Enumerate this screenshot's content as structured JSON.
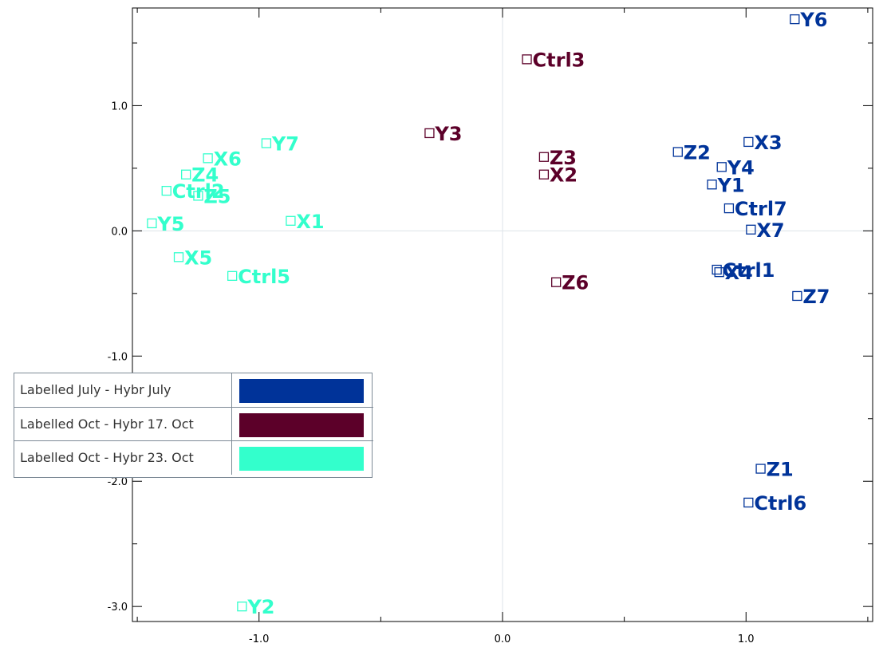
{
  "chart_data": {
    "type": "scatter",
    "title": "",
    "xlabel": "",
    "ylabel": "",
    "xlim": [
      -1.52,
      1.52
    ],
    "ylim": [
      -3.12,
      1.78
    ],
    "x_ticks": [
      {
        "value": -1.0,
        "label": "-1.0"
      },
      {
        "value": 0.0,
        "label": "0.0"
      },
      {
        "value": 1.0,
        "label": "1.0"
      }
    ],
    "y_ticks": [
      {
        "value": 1.0,
        "label": "1.0"
      },
      {
        "value": 0.0,
        "label": "0.0"
      },
      {
        "value": -1.0,
        "label": "-1.0"
      },
      {
        "value": -2.0,
        "label": "-2.0"
      },
      {
        "value": -3.0,
        "label": "-3.0"
      }
    ],
    "zero_lines": true,
    "legend_position": "left",
    "series": [
      {
        "name": "Labelled July - Hybr July",
        "color": "#003399",
        "points": [
          {
            "label": "Y6",
            "x": 1.2,
            "y": 1.69
          },
          {
            "label": "X3",
            "x": 1.01,
            "y": 0.71
          },
          {
            "label": "Z2",
            "x": 0.72,
            "y": 0.63
          },
          {
            "label": "Y4",
            "x": 0.9,
            "y": 0.51
          },
          {
            "label": "Y1",
            "x": 0.86,
            "y": 0.37
          },
          {
            "label": "Ctrl7",
            "x": 0.93,
            "y": 0.18
          },
          {
            "label": "X7",
            "x": 1.02,
            "y": 0.01
          },
          {
            "label": "Ctrl1",
            "x": 0.88,
            "y": -0.31
          },
          {
            "label": "X4",
            "x": 0.89,
            "y": -0.33
          },
          {
            "label": "Z7",
            "x": 1.21,
            "y": -0.52
          },
          {
            "label": "Z1",
            "x": 1.06,
            "y": -1.9
          },
          {
            "label": "Ctrl6",
            "x": 1.01,
            "y": -2.17
          }
        ]
      },
      {
        "name": "Labelled Oct - Hybr 17. Oct",
        "color": "#5c0029",
        "points": [
          {
            "label": "Ctrl3",
            "x": 0.1,
            "y": 1.37
          },
          {
            "label": "Y3",
            "x": -0.3,
            "y": 0.78
          },
          {
            "label": "Z3",
            "x": 0.17,
            "y": 0.59
          },
          {
            "label": "X2",
            "x": 0.17,
            "y": 0.45
          },
          {
            "label": "Z6",
            "x": 0.22,
            "y": -0.41
          }
        ]
      },
      {
        "name": "Labelled Oct - Hybr 23. Oct",
        "color": "#33ffcc",
        "points": [
          {
            "label": "Y7",
            "x": -0.97,
            "y": 0.7
          },
          {
            "label": "X6",
            "x": -1.21,
            "y": 0.58
          },
          {
            "label": "Z4",
            "x": -1.3,
            "y": 0.45
          },
          {
            "label": "Ctrl2",
            "x": -1.38,
            "y": 0.32
          },
          {
            "label": "Z5",
            "x": -1.25,
            "y": 0.28
          },
          {
            "label": "Y5",
            "x": -1.44,
            "y": 0.06
          },
          {
            "label": "X1",
            "x": -0.87,
            "y": 0.08
          },
          {
            "label": "X5",
            "x": -1.33,
            "y": -0.21
          },
          {
            "label": "Ctrl5",
            "x": -1.11,
            "y": -0.36
          },
          {
            "label": "Y2",
            "x": -1.07,
            "y": -3.0
          }
        ]
      }
    ]
  }
}
